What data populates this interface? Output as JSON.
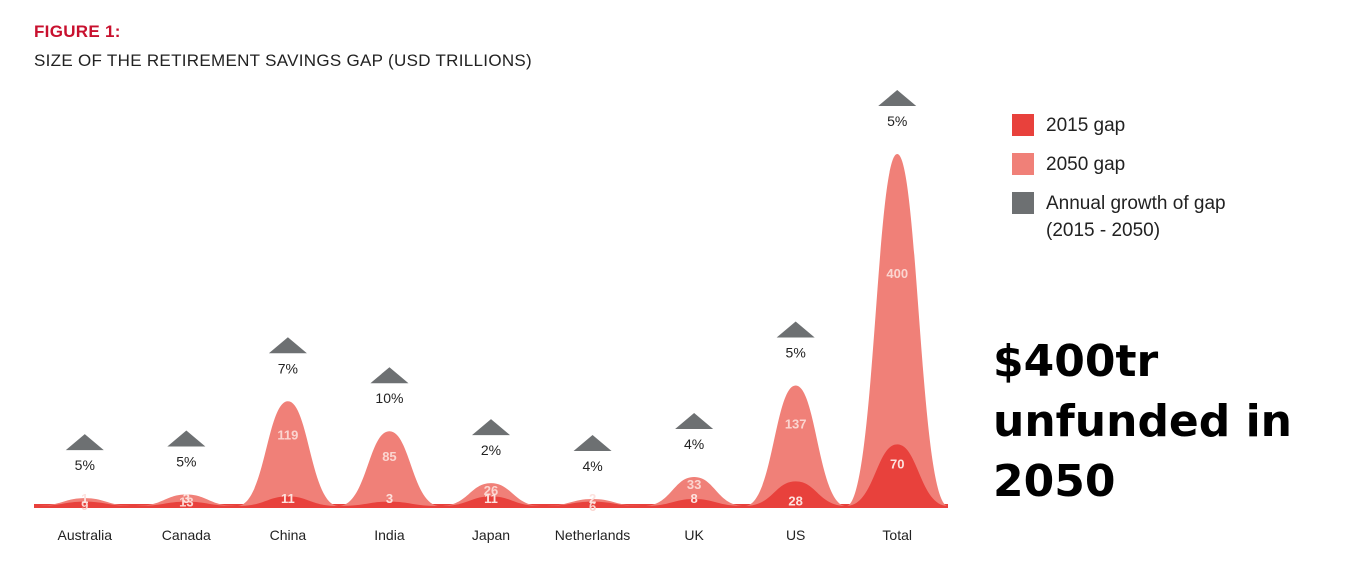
{
  "figure_label": "FIGURE 1:",
  "figure_title": "SIZE OF THE RETIREMENT SAVINGS GAP (USD TRILLIONS)",
  "callout": {
    "line1": "$400tr",
    "line2": "unfunded in",
    "line3": "2050"
  },
  "legend": [
    {
      "label": "2015 gap",
      "color": "#e8413c"
    },
    {
      "label": "2050 gap",
      "color": "#f08078"
    },
    {
      "label": "Annual growth of gap",
      "label2": "(2015 - 2050)",
      "color": "#6d7072"
    }
  ],
  "chart_data": {
    "type": "area",
    "categories": [
      "Australia",
      "Canada",
      "China",
      "India",
      "Japan",
      "Netherlands",
      "UK",
      "US",
      "Total"
    ],
    "series": [
      {
        "name": "2015 gap",
        "values": [
          1,
          3,
          11,
          3,
          11,
          2,
          8,
          28,
          70
        ]
      },
      {
        "name": "2050 gap",
        "values": [
          9,
          13,
          119,
          85,
          26,
          6,
          33,
          137,
          400
        ]
      },
      {
        "name": "Annual growth of gap",
        "values": [
          "5%",
          "5%",
          "7%",
          "10%",
          "2%",
          "4%",
          "4%",
          "5%",
          "5%"
        ]
      }
    ],
    "ylim": [
      0,
      400
    ],
    "grid": false,
    "legend_position": "right"
  }
}
